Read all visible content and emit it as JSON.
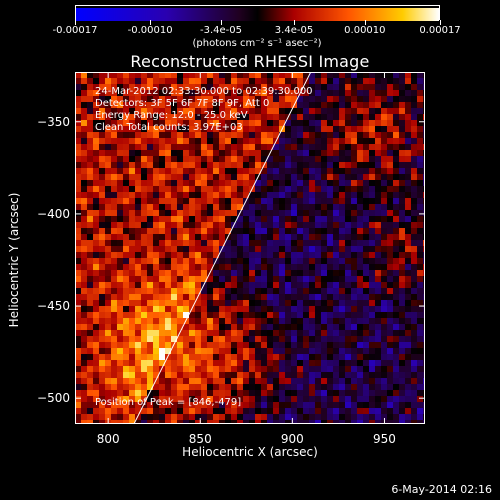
{
  "colorbar": {
    "tick_labels": [
      "-0.00017",
      "-0.00010",
      "-3.4e-05",
      "3.4e-05",
      "0.00010",
      "0.00017"
    ],
    "tick_values": [
      -0.00017,
      -0.0001,
      -3.4e-05,
      3.4e-05,
      0.0001,
      0.00017
    ],
    "unit": "(photons cm⁻² s⁻¹ asec⁻²)"
  },
  "chart_data": {
    "type": "heatmap",
    "title": "Reconstructed RHESSI Image",
    "xlabel": "Heliocentric X (arcsec)",
    "ylabel": "Heliocentric Y (arcsec)",
    "xlim": [
      782,
      972
    ],
    "ylim": [
      -514,
      -323
    ],
    "x_ticks": [
      800,
      850,
      900,
      950
    ],
    "y_ticks": [
      -350,
      -400,
      -450,
      -500
    ],
    "value_range": [
      -0.00017,
      0.00017
    ],
    "limb_line": [
      [
        814,
        -514
      ],
      [
        910,
        -323
      ]
    ],
    "peak_position": [
      846,
      -479
    ],
    "annotations": [
      "24-Mar-2012 02:33:30.000 to 02:39:30.000",
      "Detectors: 3F 5F 6F 7F 8F 9F, Att 0",
      "Energy Range: 12.0 - 25.0 keV",
      "Clean     Total counts: 3.97E+03"
    ],
    "peak_text": "Position of Peak = [846,-479]"
  },
  "footer": {
    "date": "6-May-2014 02:16"
  }
}
